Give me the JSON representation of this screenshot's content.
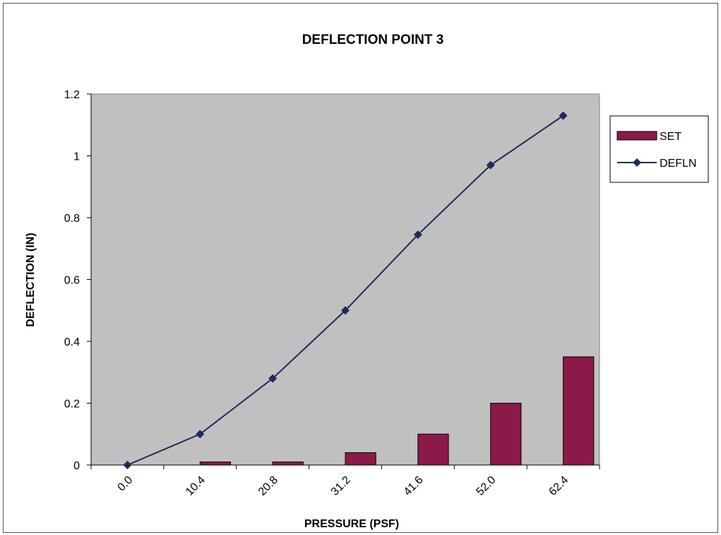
{
  "chart_data": {
    "type": "bar",
    "title": "DEFLECTION POINT 3",
    "xlabel": "PRESSURE (PSF)",
    "ylabel": "DEFLECTION (IN)",
    "categories": [
      "0.0",
      "10.4",
      "20.8",
      "31.2",
      "41.6",
      "52.0",
      "62.4"
    ],
    "ylim": [
      0,
      1.2
    ],
    "yticks": [
      "0",
      "0.2",
      "0.4",
      "0.6",
      "0.8",
      "1",
      "1.2"
    ],
    "legend_position": "right",
    "plot_background": "#c0c0c0",
    "grid": false,
    "series": [
      {
        "name": "SET",
        "type": "bar",
        "color": "#8b1a4a",
        "values": [
          0,
          0.01,
          0.01,
          0.04,
          0.1,
          0.2,
          0.35
        ]
      },
      {
        "name": "DEFLN",
        "type": "line",
        "marker": "diamond",
        "color": "#1f2a5c",
        "values": [
          0,
          0.1,
          0.28,
          0.5,
          0.745,
          0.97,
          1.13
        ]
      }
    ]
  }
}
